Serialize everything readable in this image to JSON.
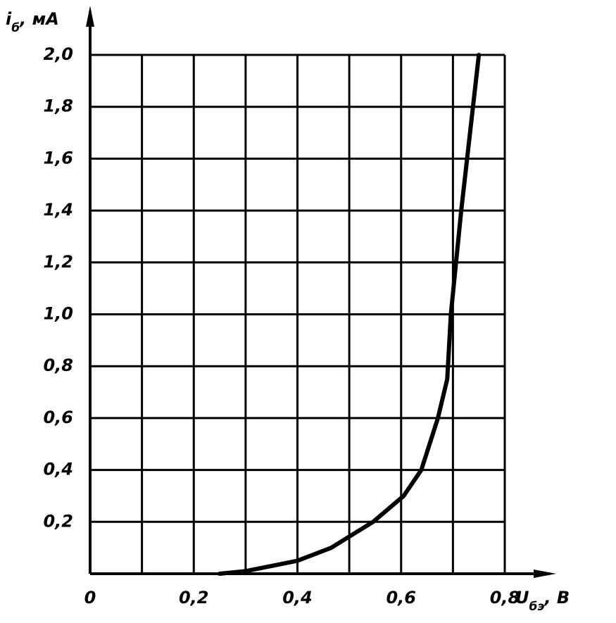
{
  "chart_data": {
    "type": "line",
    "y_label": {
      "symbol": "i",
      "subscript": "б",
      "unit": ", мА"
    },
    "x_label": {
      "symbol": "U",
      "subscript": "бэ",
      "unit": ", В"
    },
    "x": [
      0.25,
      0.3,
      0.4,
      0.465,
      0.546,
      0.605,
      0.639,
      0.671,
      0.689,
      0.696,
      0.716,
      0.75
    ],
    "values": [
      0,
      0.01,
      0.05,
      0.1,
      0.2,
      0.3,
      0.4,
      0.6,
      0.75,
      1.0,
      1.4,
      2.0
    ],
    "color": "#000000",
    "xlim": [
      0,
      0.8
    ],
    "ylim": [
      0,
      2.0
    ],
    "xticks": [
      0,
      {
        "value": 0.2,
        "label": "0,2"
      },
      {
        "value": 0.4,
        "label": "0,4"
      },
      {
        "value": 0.6,
        "label": "0,6"
      },
      {
        "value": 0.8,
        "label": "0,8"
      }
    ],
    "x_minor_ticks": [
      0.1,
      0.3,
      0.5,
      0.7
    ],
    "yticks": [
      {
        "value": 0.2,
        "label": "0,2"
      },
      {
        "value": 0.4,
        "label": "0,4"
      },
      {
        "value": 0.6,
        "label": "0,6"
      },
      {
        "value": 0.8,
        "label": "0,8"
      },
      {
        "value": 1.0,
        "label": "1,0"
      },
      {
        "value": 1.2,
        "label": "1,2"
      },
      {
        "value": 1.4,
        "label": "1,4"
      },
      {
        "value": 1.6,
        "label": "1,6"
      },
      {
        "value": 1.8,
        "label": "1,8"
      },
      {
        "value": 2.0,
        "label": "2,0"
      }
    ],
    "grid": true
  }
}
